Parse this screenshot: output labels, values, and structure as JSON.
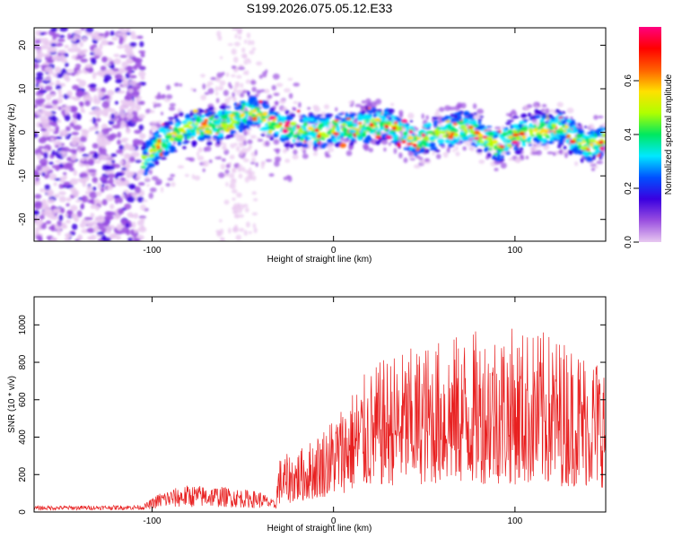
{
  "chart_data": [
    {
      "type": "heatmap",
      "title": "S199.2026.075.05.12.E33",
      "xlabel": "Height of straight line (km)",
      "ylabel": "Frequency (Hz)",
      "xlim": [
        -165,
        150
      ],
      "ylim": [
        -25,
        24
      ],
      "xticks": [
        -100,
        0,
        100
      ],
      "yticks": [
        -20,
        -10,
        0,
        10,
        20
      ],
      "colorbar": {
        "label": "Normalized spectral amplitude",
        "range": [
          0.0,
          0.8
        ],
        "ticks": [
          "0.0",
          "0.2",
          "0.4",
          "0.6"
        ],
        "colors": [
          "#e8c8f0",
          "#9a4fe0",
          "#3a00e0",
          "#0050ff",
          "#00e8ff",
          "#00e860",
          "#b0ff00",
          "#ffe000",
          "#ff6000",
          "#ff0000",
          "#ff0080"
        ]
      },
      "noise_region_x": [
        -165,
        -105
      ],
      "ridge_center": [
        {
          "x": -105,
          "y": -7
        },
        {
          "x": -95,
          "y": -2
        },
        {
          "x": -80,
          "y": 1
        },
        {
          "x": -60,
          "y": 2
        },
        {
          "x": -45,
          "y": 5
        },
        {
          "x": -30,
          "y": 1
        },
        {
          "x": -10,
          "y": 0
        },
        {
          "x": 10,
          "y": 1
        },
        {
          "x": 30,
          "y": 2
        },
        {
          "x": 45,
          "y": -2
        },
        {
          "x": 60,
          "y": 0
        },
        {
          "x": 75,
          "y": 1
        },
        {
          "x": 90,
          "y": -3
        },
        {
          "x": 105,
          "y": 0
        },
        {
          "x": 125,
          "y": 1
        },
        {
          "x": 140,
          "y": -3
        },
        {
          "x": 150,
          "y": -2
        }
      ]
    },
    {
      "type": "line",
      "xlabel": "Height of straight line (km)",
      "ylabel": "SNR (10 * v/v)",
      "xlim": [
        -165,
        150
      ],
      "ylim": [
        0,
        1150
      ],
      "xticks": [
        -100,
        0,
        100
      ],
      "yticks": [
        0,
        200,
        400,
        600,
        800,
        1000
      ],
      "color": "#e82020",
      "envelope": [
        {
          "x": -165,
          "base": 10,
          "amp": 22
        },
        {
          "x": -105,
          "base": 12,
          "amp": 25
        },
        {
          "x": -95,
          "base": 20,
          "amp": 90
        },
        {
          "x": -80,
          "base": 25,
          "amp": 120
        },
        {
          "x": -60,
          "base": 25,
          "amp": 110
        },
        {
          "x": -40,
          "base": 20,
          "amp": 90
        },
        {
          "x": -32,
          "base": 15,
          "amp": 40
        },
        {
          "x": -30,
          "base": 40,
          "amp": 250
        },
        {
          "x": -15,
          "base": 60,
          "amp": 300
        },
        {
          "x": 0,
          "base": 90,
          "amp": 430
        },
        {
          "x": 15,
          "base": 120,
          "amp": 600
        },
        {
          "x": 30,
          "base": 140,
          "amp": 700
        },
        {
          "x": 60,
          "base": 150,
          "amp": 780
        },
        {
          "x": 90,
          "base": 150,
          "amp": 850
        },
        {
          "x": 120,
          "base": 140,
          "amp": 820
        },
        {
          "x": 150,
          "base": 130,
          "amp": 700
        }
      ]
    }
  ]
}
